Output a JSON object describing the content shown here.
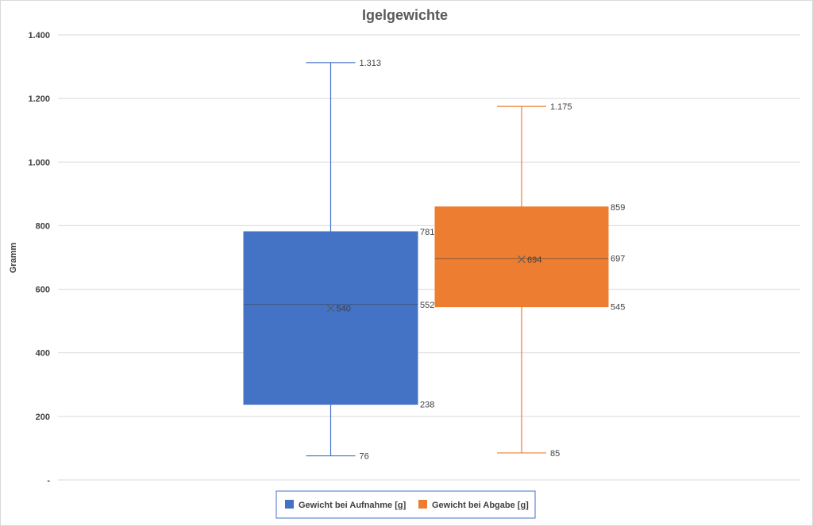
{
  "chart_data": {
    "type": "box",
    "title": "Igelgewichte",
    "ylabel": "Gramm",
    "xlabel": "",
    "ylim": [
      0,
      1400
    ],
    "yticks": [
      {
        "value": 0,
        "label": "-"
      },
      {
        "value": 200,
        "label": "200"
      },
      {
        "value": 400,
        "label": "400"
      },
      {
        "value": 600,
        "label": "600"
      },
      {
        "value": 800,
        "label": "800"
      },
      {
        "value": 1000,
        "label": "1.000"
      },
      {
        "value": 1200,
        "label": "1.200"
      },
      {
        "value": 1400,
        "label": "1.400"
      }
    ],
    "grid": true,
    "legend_position": "bottom",
    "series": [
      {
        "name": "Gewicht bei Aufnahme [g]",
        "color": "#4472C4",
        "min": 76,
        "q1": 238,
        "median": 552,
        "q3": 781,
        "max": 1313,
        "mean": 540,
        "labels": {
          "min": "76",
          "q1": "238",
          "median": "552",
          "q3": "781",
          "max": "1.313",
          "mean": "540"
        }
      },
      {
        "name": "Gewicht bei Abgabe [g]",
        "color": "#ED7D31",
        "min": 85,
        "q1": 545,
        "median": 697,
        "q3": 859,
        "max": 1175,
        "mean": 694,
        "labels": {
          "min": "85",
          "q1": "545",
          "median": "697",
          "q3": "859",
          "max": "1.175",
          "mean": "694"
        }
      }
    ]
  }
}
